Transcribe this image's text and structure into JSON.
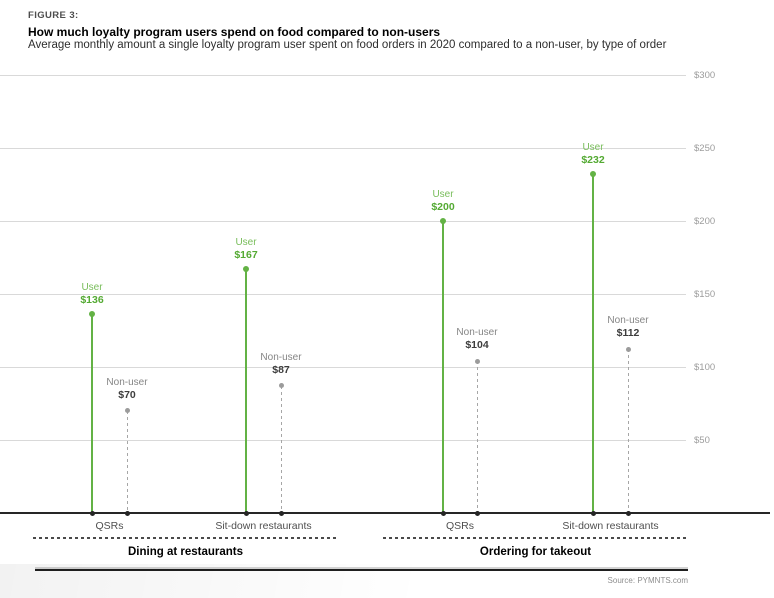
{
  "header": {
    "figure_label": "FIGURE 3:",
    "title": "How much loyalty program users spend on food compared to non-users",
    "subtitle": "Average monthly amount a single loyalty program user spent on food orders in 2020 compared to a non-user, by type of order"
  },
  "source": "Source: PYMNTS.com",
  "colors": {
    "user_stem": "#63b245",
    "user_name": "#78bd5a",
    "user_value": "#54aa33",
    "nonuser_stem": "#a6a6a6",
    "nonuser_dot": "#9b9b9b",
    "nonuser_name": "#858585",
    "nonuser_value": "#3d3d3d",
    "gridline": "#d9d9d9",
    "axis_tick_label": "#9c9c9c",
    "baseline": "#262626",
    "dotted_separator": "#4a4a4a"
  },
  "chart_data": {
    "type": "lollipop",
    "ylim": [
      0,
      300
    ],
    "grid": true,
    "yticks": [
      {
        "value": 50,
        "label": "$50"
      },
      {
        "value": 100,
        "label": "$100"
      },
      {
        "value": 150,
        "label": "$150"
      },
      {
        "value": 200,
        "label": "$200"
      },
      {
        "value": 250,
        "label": "$250"
      },
      {
        "value": 300,
        "label": "$300"
      }
    ],
    "series_labels": {
      "user": "User",
      "nonuser": "Non-user"
    },
    "groups": [
      {
        "label": "Dining at restaurants",
        "categories": [
          {
            "label": "QSRs",
            "user": 136,
            "user_display": "$136",
            "nonuser": 70,
            "nonuser_display": "$70"
          },
          {
            "label": "Sit-down restaurants",
            "user": 167,
            "user_display": "$167",
            "nonuser": 87,
            "nonuser_display": "$87"
          }
        ]
      },
      {
        "label": "Ordering for takeout",
        "categories": [
          {
            "label": "QSRs",
            "user": 200,
            "user_display": "$200",
            "nonuser": 104,
            "nonuser_display": "$104"
          },
          {
            "label": "Sit-down restaurants",
            "user": 232,
            "user_display": "$232",
            "nonuser": 112,
            "nonuser_display": "$112"
          }
        ]
      }
    ]
  }
}
